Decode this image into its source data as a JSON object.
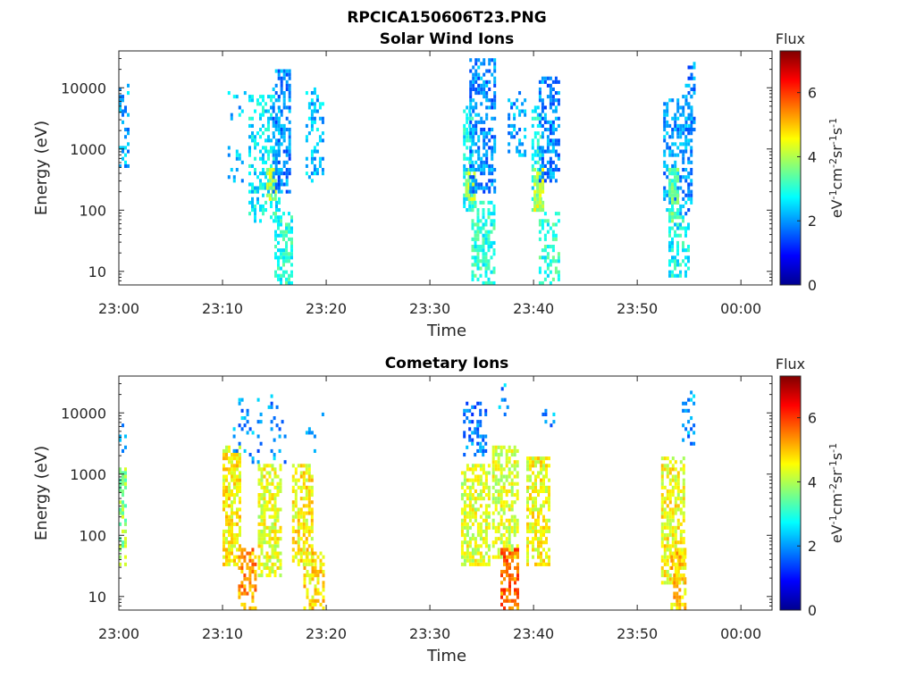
{
  "figure": {
    "title": "RPCICA150606T23.PNG"
  },
  "colormap": [
    "#000080",
    "#0000ff",
    "#0080ff",
    "#00ffff",
    "#80ff80",
    "#ffff00",
    "#ff8000",
    "#ff0000",
    "#800000"
  ],
  "chart_data": [
    {
      "type": "heatmap",
      "title": "Solar Wind Ions",
      "xlabel": "Time",
      "ylabel": "Energy (eV)",
      "x_ticks": [
        "23:00",
        "23:10",
        "23:20",
        "23:30",
        "23:40",
        "23:50",
        "00:00"
      ],
      "x_tick_minutes": [
        0,
        10,
        20,
        30,
        40,
        50,
        60
      ],
      "xlim_minutes": [
        0,
        63
      ],
      "y_scale": "log",
      "ylim": [
        6,
        40000
      ],
      "y_ticks": [
        "10",
        "100",
        "1000",
        "10000"
      ],
      "y_tick_values": [
        10,
        100,
        1000,
        10000
      ],
      "colorbar": {
        "label": "Flux",
        "units": "eV-1cm-2sr-1s-1",
        "range": [
          0,
          7.3
        ],
        "ticks": [
          "0",
          "2",
          "4",
          "6"
        ],
        "tick_values": [
          0,
          2,
          4,
          6
        ]
      },
      "bursts": [
        {
          "t0": 0.0,
          "t1": 0.8,
          "emin": 400,
          "emax": 12000,
          "flux": 2.2,
          "density": 0.35
        },
        {
          "t0": 10.5,
          "t1": 12.3,
          "emin": 250,
          "emax": 9000,
          "flux": 2.3,
          "density": 0.12
        },
        {
          "t0": 12.5,
          "t1": 15.5,
          "emin": 60,
          "emax": 8000,
          "flux": 2.6,
          "density": 0.4
        },
        {
          "t0": 14.2,
          "t1": 15.0,
          "emin": 150,
          "emax": 500,
          "flux": 4.0,
          "density": 0.8
        },
        {
          "t0": 14.8,
          "t1": 16.6,
          "emin": 200,
          "emax": 20000,
          "flux": 1.9,
          "density": 0.6
        },
        {
          "t0": 15.0,
          "t1": 16.6,
          "emin": 6,
          "emax": 100,
          "flux": 3.0,
          "density": 0.6
        },
        {
          "t0": 18.0,
          "t1": 19.8,
          "emin": 300,
          "emax": 10000,
          "flux": 2.3,
          "density": 0.35
        },
        {
          "t0": 33.2,
          "t1": 34.2,
          "emin": 100,
          "emax": 5000,
          "flux": 2.7,
          "density": 0.6
        },
        {
          "t0": 33.4,
          "t1": 34.2,
          "emin": 150,
          "emax": 500,
          "flux": 4.1,
          "density": 0.85
        },
        {
          "t0": 33.8,
          "t1": 36.2,
          "emin": 200,
          "emax": 30000,
          "flux": 1.9,
          "density": 0.55
        },
        {
          "t0": 34.0,
          "t1": 36.2,
          "emin": 6,
          "emax": 150,
          "flux": 3.0,
          "density": 0.55
        },
        {
          "t0": 37.5,
          "t1": 39.3,
          "emin": 700,
          "emax": 9000,
          "flux": 2.1,
          "density": 0.3
        },
        {
          "t0": 39.8,
          "t1": 40.8,
          "emin": 100,
          "emax": 5000,
          "flux": 2.9,
          "density": 0.55
        },
        {
          "t0": 40.0,
          "t1": 40.8,
          "emin": 100,
          "emax": 500,
          "flux": 4.1,
          "density": 0.85
        },
        {
          "t0": 40.5,
          "t1": 42.5,
          "emin": 300,
          "emax": 15000,
          "flux": 1.9,
          "density": 0.55
        },
        {
          "t0": 40.5,
          "t1": 42.5,
          "emin": 6,
          "emax": 100,
          "flux": 3.0,
          "density": 0.45
        },
        {
          "t0": 52.5,
          "t1": 55.3,
          "emin": 80,
          "emax": 8000,
          "flux": 2.0,
          "density": 0.45
        },
        {
          "t0": 53.0,
          "t1": 54.0,
          "emin": 60,
          "emax": 500,
          "flux": 3.4,
          "density": 0.8
        },
        {
          "t0": 53.0,
          "t1": 55.0,
          "emin": 8,
          "emax": 80,
          "flux": 2.8,
          "density": 0.45
        },
        {
          "t0": 54.6,
          "t1": 55.4,
          "emin": 2000,
          "emax": 28000,
          "flux": 1.9,
          "density": 0.4
        }
      ]
    },
    {
      "type": "heatmap",
      "title": "Cometary Ions",
      "xlabel": "Time",
      "ylabel": "Energy (eV)",
      "x_ticks": [
        "23:00",
        "23:10",
        "23:20",
        "23:30",
        "23:40",
        "23:50",
        "00:00"
      ],
      "x_tick_minutes": [
        0,
        10,
        20,
        30,
        40,
        50,
        60
      ],
      "xlim_minutes": [
        0,
        63
      ],
      "y_scale": "log",
      "ylim": [
        6,
        40000
      ],
      "y_ticks": [
        "10",
        "100",
        "1000",
        "10000"
      ],
      "y_tick_values": [
        10,
        100,
        1000,
        10000
      ],
      "colorbar": {
        "label": "Flux",
        "units": "eV-1cm-2sr-1s-1",
        "range": [
          0,
          7.3
        ],
        "ticks": [
          "0",
          "2",
          "4",
          "6"
        ],
        "tick_values": [
          0,
          2,
          4,
          6
        ]
      },
      "bursts": [
        {
          "t0": 0.0,
          "t1": 0.6,
          "emin": 30,
          "emax": 1200,
          "flux": 3.8,
          "density": 0.6
        },
        {
          "t0": 0.0,
          "t1": 0.6,
          "emin": 2000,
          "emax": 9000,
          "flux": 2.0,
          "density": 0.2
        },
        {
          "t0": 10.0,
          "t1": 11.8,
          "emin": 30,
          "emax": 3000,
          "flux": 4.6,
          "density": 0.7
        },
        {
          "t0": 11.5,
          "t1": 13.3,
          "emin": 6,
          "emax": 60,
          "flux": 5.3,
          "density": 0.55
        },
        {
          "t0": 11.0,
          "t1": 16.0,
          "emin": 1500,
          "emax": 20000,
          "flux": 2.0,
          "density": 0.12
        },
        {
          "t0": 13.4,
          "t1": 15.6,
          "emin": 20,
          "emax": 1500,
          "flux": 4.4,
          "density": 0.65
        },
        {
          "t0": 16.7,
          "t1": 18.6,
          "emin": 30,
          "emax": 1500,
          "flux": 4.6,
          "density": 0.7
        },
        {
          "t0": 17.8,
          "t1": 19.8,
          "emin": 6,
          "emax": 60,
          "flux": 4.8,
          "density": 0.55
        },
        {
          "t0": 18.0,
          "t1": 19.7,
          "emin": 2000,
          "emax": 10000,
          "flux": 2.0,
          "density": 0.12
        },
        {
          "t0": 33.0,
          "t1": 35.8,
          "emin": 30,
          "emax": 1500,
          "flux": 4.3,
          "density": 0.65
        },
        {
          "t0": 33.2,
          "t1": 35.5,
          "emin": 2000,
          "emax": 15000,
          "flux": 1.8,
          "density": 0.35
        },
        {
          "t0": 36.0,
          "t1": 38.4,
          "emin": 40,
          "emax": 3000,
          "flux": 4.3,
          "density": 0.6
        },
        {
          "t0": 36.8,
          "t1": 38.5,
          "emin": 6,
          "emax": 60,
          "flux": 5.6,
          "density": 0.6
        },
        {
          "t0": 36.6,
          "t1": 37.4,
          "emin": 8000,
          "emax": 30000,
          "flux": 2.0,
          "density": 0.2
        },
        {
          "t0": 39.3,
          "t1": 41.5,
          "emin": 30,
          "emax": 2000,
          "flux": 4.5,
          "density": 0.65
        },
        {
          "t0": 40.8,
          "t1": 42.0,
          "emin": 6000,
          "emax": 12000,
          "flux": 2.0,
          "density": 0.3
        },
        {
          "t0": 52.3,
          "t1": 54.5,
          "emin": 15,
          "emax": 2000,
          "flux": 4.5,
          "density": 0.65
        },
        {
          "t0": 53.2,
          "t1": 54.5,
          "emin": 6,
          "emax": 60,
          "flux": 4.9,
          "density": 0.55
        },
        {
          "t0": 54.3,
          "t1": 55.5,
          "emin": 3000,
          "emax": 28000,
          "flux": 2.0,
          "density": 0.35
        }
      ]
    }
  ]
}
